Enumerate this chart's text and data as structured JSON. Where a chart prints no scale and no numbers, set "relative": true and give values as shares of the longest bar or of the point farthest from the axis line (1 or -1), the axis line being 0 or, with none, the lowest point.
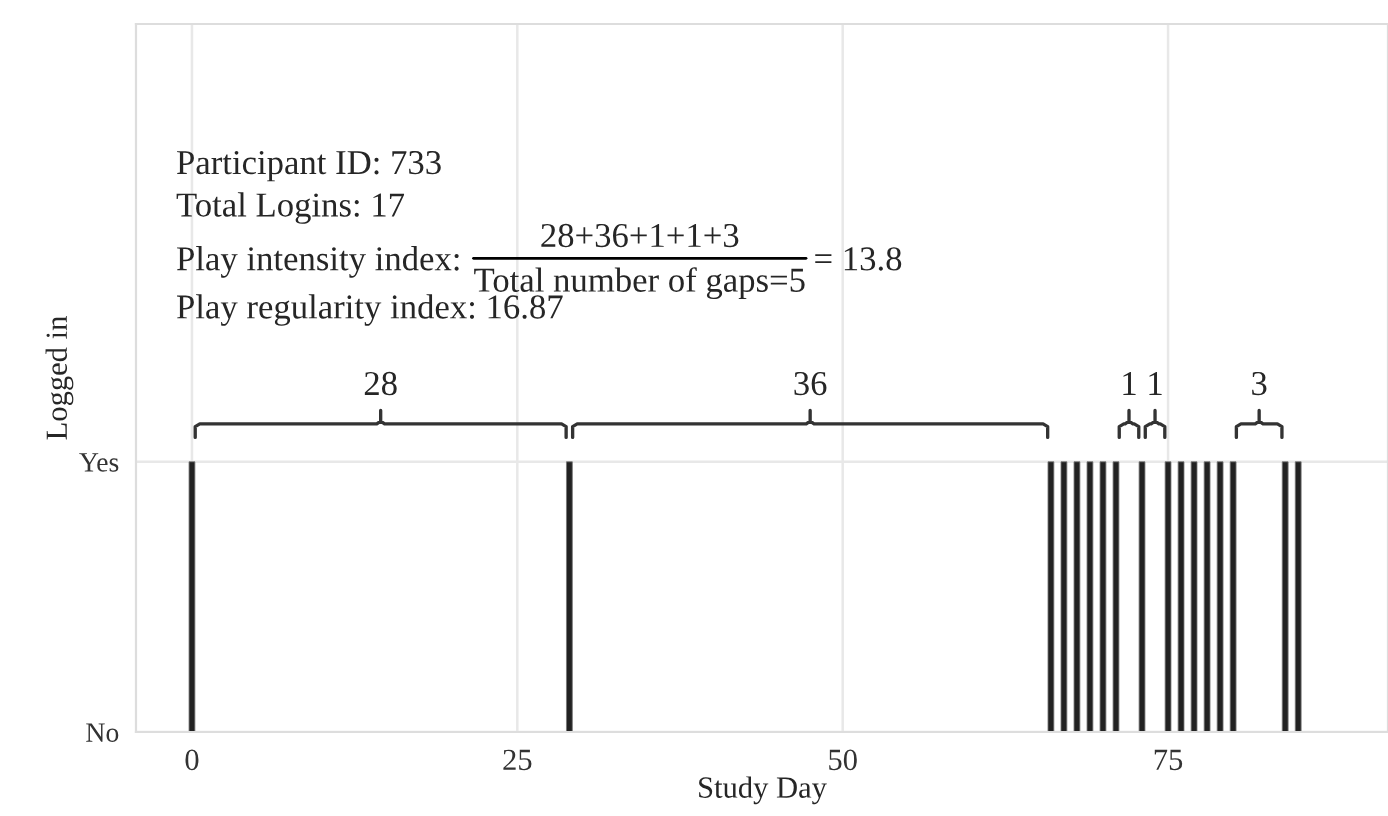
{
  "chart_data": {
    "type": "bar",
    "xlabel": "Study Day",
    "ylabel": "Logged in",
    "x": [
      0,
      29,
      66,
      67,
      68,
      69,
      70,
      71,
      73,
      75,
      76,
      77,
      78,
      79,
      80,
      84,
      85
    ],
    "values": [
      1,
      1,
      1,
      1,
      1,
      1,
      1,
      1,
      1,
      1,
      1,
      1,
      1,
      1,
      1,
      1,
      1
    ],
    "relative": true,
    "color": "#222222",
    "xlim": [
      -4.3,
      91.9
    ],
    "xticks": [
      0,
      25,
      50,
      75
    ],
    "grid": true,
    "annotations": [
      "Participant ID: 733",
      "Total Logins: 17",
      "Play intensity index:",
      "28+36+1+1+3",
      "Total number of gaps=5",
      "= 13.8",
      "Play regularity index: 16.87",
      "28",
      "36",
      "1",
      "1",
      "3",
      "No",
      "Yes"
    ]
  }
}
